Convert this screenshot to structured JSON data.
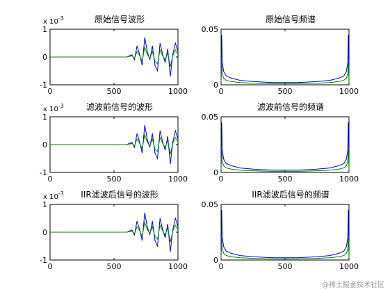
{
  "watermark": "@稀土掘金技术社区",
  "colors": {
    "series_blue": "#0000cc",
    "series_green": "#008000",
    "axis": "#000000",
    "background": "#ffffff"
  },
  "chart_data": [
    {
      "type": "line",
      "title": "原始信号波形",
      "exponent_label": "x 10",
      "exponent_sup": "-3",
      "xlim": [
        0,
        1000
      ],
      "ylim": [
        -1,
        1
      ],
      "xticks": [
        0,
        500,
        1000
      ],
      "yticks": [
        -1,
        0,
        1
      ],
      "xtick_labels": [
        "0",
        "500",
        "1000"
      ],
      "ytick_labels": [
        "-1",
        "0",
        "1"
      ],
      "series": [
        {
          "color": "#0000cc",
          "x": [
            0,
            600,
            640,
            660,
            680,
            700,
            720,
            740,
            760,
            780,
            800,
            820,
            840,
            860,
            880,
            900,
            920,
            940,
            960,
            980,
            1000
          ],
          "y": [
            0,
            0,
            0.08,
            -0.1,
            0.4,
            0.1,
            -0.3,
            0.7,
            0.2,
            -0.1,
            0.4,
            -0.3,
            -0.5,
            0.5,
            0.1,
            -0.2,
            0.3,
            -0.7,
            0.1,
            0.5,
            0.2
          ]
        },
        {
          "color": "#008000",
          "x": [
            0,
            600,
            640,
            660,
            680,
            700,
            720,
            740,
            760,
            780,
            800,
            820,
            840,
            860,
            880,
            900,
            920,
            940,
            960,
            980,
            1000
          ],
          "y": [
            0,
            0,
            0.04,
            -0.05,
            0.2,
            0.05,
            -0.15,
            0.35,
            0.1,
            -0.05,
            0.2,
            -0.15,
            -0.25,
            0.25,
            0.05,
            -0.1,
            0.15,
            -0.35,
            0.05,
            0.25,
            0.1
          ]
        }
      ]
    },
    {
      "type": "line",
      "title": "原始信号频谱",
      "xlim": [
        0,
        1000
      ],
      "ylim": [
        0,
        0.05
      ],
      "xticks": [
        0,
        500,
        1000
      ],
      "yticks": [
        0,
        0.05
      ],
      "xtick_labels": [
        "0",
        "500",
        "1000"
      ],
      "ytick_labels": [
        "0",
        "0.05"
      ],
      "series": [
        {
          "color": "#0000cc",
          "x": [
            0,
            5,
            10,
            20,
            40,
            80,
            150,
            250,
            400,
            500,
            600,
            750,
            850,
            920,
            960,
            980,
            990,
            995,
            1000
          ],
          "y": [
            0.005,
            0.045,
            0.02,
            0.012,
            0.008,
            0.006,
            0.004,
            0.003,
            0.002,
            0.002,
            0.002,
            0.003,
            0.004,
            0.006,
            0.008,
            0.012,
            0.02,
            0.045,
            0.005
          ]
        },
        {
          "color": "#008000",
          "x": [
            0,
            5,
            10,
            20,
            40,
            80,
            150,
            250,
            400,
            500,
            600,
            750,
            850,
            920,
            960,
            980,
            990,
            995,
            1000
          ],
          "y": [
            0.002,
            0.02,
            0.01,
            0.006,
            0.004,
            0.003,
            0.002,
            0.0015,
            0.001,
            0.001,
            0.001,
            0.0015,
            0.002,
            0.003,
            0.004,
            0.006,
            0.01,
            0.02,
            0.002
          ]
        }
      ]
    },
    {
      "type": "line",
      "title": "滤波前信号的波形",
      "exponent_label": "x 10",
      "exponent_sup": "-3",
      "xlim": [
        0,
        1000
      ],
      "ylim": [
        -1,
        1
      ],
      "xticks": [
        0,
        500,
        1000
      ],
      "yticks": [
        -1,
        0,
        1
      ],
      "xtick_labels": [
        "0",
        "500",
        "1000"
      ],
      "ytick_labels": [
        "-1",
        "0",
        "1"
      ],
      "series": [
        {
          "color": "#0000cc",
          "x": [
            0,
            600,
            640,
            660,
            680,
            700,
            720,
            740,
            760,
            780,
            800,
            820,
            840,
            860,
            880,
            900,
            920,
            940,
            960,
            980,
            1000
          ],
          "y": [
            0,
            0,
            0.08,
            -0.1,
            0.4,
            0.1,
            -0.3,
            0.7,
            0.2,
            -0.1,
            0.4,
            -0.3,
            -0.5,
            0.5,
            0.1,
            -0.2,
            0.3,
            -0.7,
            0.1,
            0.5,
            0.2
          ]
        },
        {
          "color": "#008000",
          "x": [
            0,
            600,
            640,
            660,
            680,
            700,
            720,
            740,
            760,
            780,
            800,
            820,
            840,
            860,
            880,
            900,
            920,
            940,
            960,
            980,
            1000
          ],
          "y": [
            0,
            0,
            0.04,
            -0.05,
            0.2,
            0.05,
            -0.15,
            0.35,
            0.1,
            -0.05,
            0.2,
            -0.15,
            -0.25,
            0.25,
            0.05,
            -0.1,
            0.15,
            -0.35,
            0.05,
            0.25,
            0.1
          ]
        }
      ]
    },
    {
      "type": "line",
      "title": "滤波前信号的频谱",
      "xlim": [
        0,
        1000
      ],
      "ylim": [
        0,
        0.05
      ],
      "xticks": [
        0,
        500,
        1000
      ],
      "yticks": [
        0,
        0.05
      ],
      "xtick_labels": [
        "0",
        "500",
        "1000"
      ],
      "ytick_labels": [
        "0",
        "0.05"
      ],
      "series": [
        {
          "color": "#0000cc",
          "x": [
            0,
            5,
            10,
            20,
            40,
            80,
            150,
            250,
            400,
            500,
            600,
            750,
            850,
            920,
            960,
            980,
            990,
            995,
            1000
          ],
          "y": [
            0.005,
            0.045,
            0.02,
            0.012,
            0.008,
            0.006,
            0.004,
            0.003,
            0.002,
            0.002,
            0.002,
            0.003,
            0.004,
            0.006,
            0.008,
            0.012,
            0.02,
            0.045,
            0.005
          ]
        },
        {
          "color": "#008000",
          "x": [
            0,
            5,
            10,
            20,
            40,
            80,
            150,
            250,
            400,
            500,
            600,
            750,
            850,
            920,
            960,
            980,
            990,
            995,
            1000
          ],
          "y": [
            0.002,
            0.02,
            0.01,
            0.006,
            0.004,
            0.003,
            0.002,
            0.0015,
            0.001,
            0.001,
            0.001,
            0.0015,
            0.002,
            0.003,
            0.004,
            0.006,
            0.01,
            0.02,
            0.002
          ]
        }
      ]
    },
    {
      "type": "line",
      "title": "IIR滤波后信号的波形",
      "exponent_label": "x 10",
      "exponent_sup": "-3",
      "xlim": [
        0,
        1000
      ],
      "ylim": [
        -1,
        1
      ],
      "xticks": [
        0,
        500,
        1000
      ],
      "yticks": [
        -1,
        0,
        1
      ],
      "xtick_labels": [
        "0",
        "500",
        "1000"
      ],
      "ytick_labels": [
        "-1",
        "0",
        "1"
      ],
      "series": [
        {
          "color": "#0000cc",
          "x": [
            0,
            600,
            640,
            660,
            680,
            700,
            720,
            740,
            760,
            780,
            800,
            820,
            840,
            860,
            880,
            900,
            920,
            940,
            960,
            980,
            1000
          ],
          "y": [
            0,
            0,
            0.08,
            -0.1,
            0.4,
            0.1,
            -0.3,
            0.7,
            0.2,
            -0.1,
            0.4,
            -0.3,
            -0.5,
            0.5,
            0.1,
            -0.2,
            0.3,
            -0.7,
            0.1,
            0.5,
            0.2
          ]
        },
        {
          "color": "#008000",
          "x": [
            0,
            600,
            640,
            660,
            680,
            700,
            720,
            740,
            760,
            780,
            800,
            820,
            840,
            860,
            880,
            900,
            920,
            940,
            960,
            980,
            1000
          ],
          "y": [
            0,
            0,
            0.04,
            -0.05,
            0.2,
            0.05,
            -0.15,
            0.35,
            0.1,
            -0.05,
            0.2,
            -0.15,
            -0.25,
            0.25,
            0.05,
            -0.1,
            0.15,
            -0.35,
            0.05,
            0.25,
            0.1
          ]
        }
      ]
    },
    {
      "type": "line",
      "title": "IIR滤波后信号的频谱",
      "xlim": [
        0,
        1000
      ],
      "ylim": [
        0,
        0.05
      ],
      "xticks": [
        0,
        500,
        1000
      ],
      "yticks": [
        0,
        0.05
      ],
      "xtick_labels": [
        "0",
        "500",
        "1000"
      ],
      "ytick_labels": [
        "0",
        "0.05"
      ],
      "series": [
        {
          "color": "#0000cc",
          "x": [
            0,
            5,
            10,
            20,
            40,
            80,
            150,
            250,
            400,
            500,
            600,
            750,
            850,
            920,
            960,
            980,
            990,
            995,
            1000
          ],
          "y": [
            0.005,
            0.045,
            0.02,
            0.012,
            0.008,
            0.006,
            0.004,
            0.003,
            0.002,
            0.002,
            0.002,
            0.003,
            0.004,
            0.006,
            0.008,
            0.012,
            0.02,
            0.045,
            0.005
          ]
        },
        {
          "color": "#008000",
          "x": [
            0,
            5,
            10,
            20,
            40,
            80,
            150,
            250,
            400,
            500,
            600,
            750,
            850,
            920,
            960,
            980,
            990,
            995,
            1000
          ],
          "y": [
            0.002,
            0.02,
            0.01,
            0.006,
            0.004,
            0.003,
            0.002,
            0.0015,
            0.001,
            0.001,
            0.001,
            0.0015,
            0.002,
            0.003,
            0.004,
            0.006,
            0.01,
            0.02,
            0.002
          ]
        }
      ]
    }
  ]
}
